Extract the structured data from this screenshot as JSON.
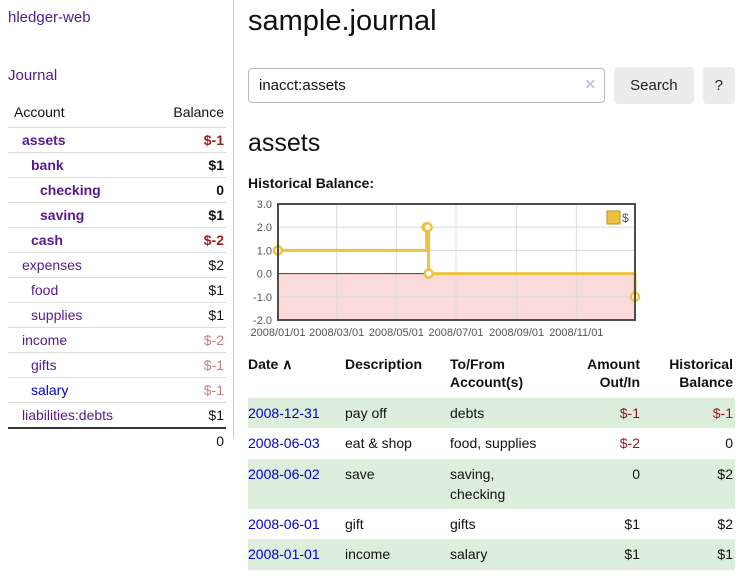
{
  "app": {
    "title": "hledger-web"
  },
  "sidebar": {
    "journal_label": "Journal",
    "table": {
      "account_header": "Account",
      "balance_header": "Balance",
      "rows": [
        {
          "account": "assets",
          "balance": "$-1",
          "depth": 1,
          "bold": true,
          "negative": true
        },
        {
          "account": "bank",
          "balance": "$1",
          "depth": 2,
          "bold": true,
          "negative": false
        },
        {
          "account": "checking",
          "balance": "0",
          "depth": 3,
          "bold": true,
          "negative": false
        },
        {
          "account": "saving",
          "balance": "$1",
          "depth": 3,
          "bold": true,
          "negative": false
        },
        {
          "account": "cash",
          "balance": "$-2",
          "depth": 2,
          "bold": true,
          "negative": true
        },
        {
          "account": "expenses",
          "balance": "$2",
          "depth": 1,
          "bold": false,
          "negative": false
        },
        {
          "account": "food",
          "balance": "$1",
          "depth": 2,
          "bold": false,
          "negative": false
        },
        {
          "account": "supplies",
          "balance": "$1",
          "depth": 2,
          "bold": false,
          "negative": false
        },
        {
          "account": "income",
          "balance": "$-2",
          "depth": 1,
          "bold": false,
          "negative": true
        },
        {
          "account": "gifts",
          "balance": "$-1",
          "depth": 2,
          "bold": false,
          "negative": true
        },
        {
          "account": "salary",
          "balance": "$-1",
          "depth": 2,
          "bold": false,
          "negative": true,
          "link_color": "#0000cc"
        },
        {
          "account": "liabilities:debts",
          "balance": "$1",
          "depth": 1,
          "bold": false,
          "negative": false
        }
      ],
      "total": "0"
    }
  },
  "main": {
    "title": "sample.journal",
    "search": {
      "value": "inacct:assets",
      "clear_icon": "✕",
      "button_label": "Search",
      "help_label": "?"
    },
    "account_heading": "assets",
    "chart_label": "Historical Balance:"
  },
  "chart_data": {
    "type": "line",
    "step": true,
    "title": "Historical Balance:",
    "legend_position": "top-right",
    "grid": true,
    "x_range": [
      "2008-01-01",
      "2008-12-31"
    ],
    "ylim": [
      -2,
      3
    ],
    "y_ticks": [
      3.0,
      2.0,
      1.0,
      0.0,
      -1.0,
      -2.0
    ],
    "x_ticks": [
      {
        "date": "2008-01-01",
        "label": "2008/01/01"
      },
      {
        "date": "2008-03-01",
        "label": "2008/03/01"
      },
      {
        "date": "2008-05-01",
        "label": "2008/05/01"
      },
      {
        "date": "2008-07-01",
        "label": "2008/07/01"
      },
      {
        "date": "2008-09-01",
        "label": "2008/09/01"
      },
      {
        "date": "2008-11-01",
        "label": "2008/11/01"
      }
    ],
    "series": [
      {
        "name": "$",
        "color": "#edc240",
        "marker_fill": "#ffffff",
        "points": [
          [
            "2008-01-01",
            1
          ],
          [
            "2008-06-01",
            2
          ],
          [
            "2008-06-02",
            2
          ],
          [
            "2008-06-03",
            0
          ],
          [
            "2008-12-31",
            -1
          ]
        ]
      }
    ],
    "negative_fill": "#fbdada",
    "zero_line_color": "#8b1a1a",
    "grid_color": "#dcdcdc",
    "border_color": "#4d4d4d",
    "tick_label_color": "#545454",
    "legend_swatch_border": "#b5901f"
  },
  "register": {
    "headers": {
      "date": "Date",
      "sort_indicator": "∧",
      "description": "Description",
      "accounts": "To/From Account(s)",
      "amount": "Amount Out/In",
      "balance": "Historical Balance"
    },
    "rows": [
      {
        "date": "2008-12-31",
        "description": "pay off",
        "accounts": "debts",
        "amount": "$-1",
        "amount_negative": true,
        "balance": "$-1",
        "balance_negative": true
      },
      {
        "date": "2008-06-03",
        "description": "eat & shop",
        "accounts": "food, supplies",
        "amount": "$-2",
        "amount_negative": true,
        "balance": "0",
        "balance_negative": false
      },
      {
        "date": "2008-06-02",
        "description": "save",
        "accounts": "saving, checking",
        "amount": "0",
        "amount_negative": false,
        "balance": "$2",
        "balance_negative": false
      },
      {
        "date": "2008-06-01",
        "description": "gift",
        "accounts": "gifts",
        "amount": "$1",
        "amount_negative": false,
        "balance": "$2",
        "balance_negative": false
      },
      {
        "date": "2008-01-01",
        "description": "income",
        "accounts": "salary",
        "amount": "$1",
        "amount_negative": false,
        "balance": "$1",
        "balance_negative": false
      }
    ]
  }
}
